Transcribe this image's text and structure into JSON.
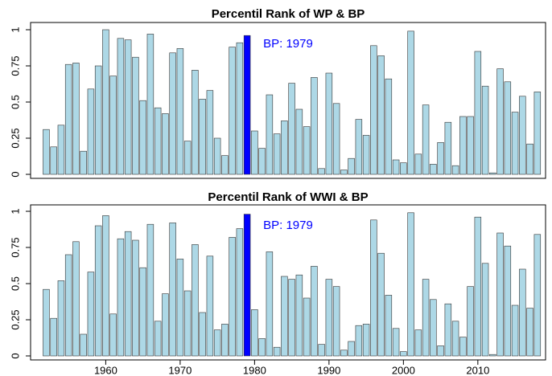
{
  "chart_data": [
    {
      "type": "bar",
      "title": "Percentil Rank of WP & BP",
      "x": [
        1952,
        1953,
        1954,
        1955,
        1956,
        1957,
        1958,
        1959,
        1960,
        1961,
        1962,
        1963,
        1964,
        1965,
        1966,
        1967,
        1968,
        1969,
        1970,
        1971,
        1972,
        1973,
        1974,
        1975,
        1976,
        1977,
        1978,
        1979,
        1980,
        1981,
        1982,
        1983,
        1984,
        1985,
        1986,
        1987,
        1988,
        1989,
        1990,
        1991,
        1992,
        1993,
        1994,
        1995,
        1996,
        1997,
        1998,
        1999,
        2000,
        2001,
        2002,
        2003,
        2004,
        2005,
        2006,
        2007,
        2008,
        2009,
        2010,
        2011,
        2012,
        2013,
        2014,
        2015,
        2016,
        2017,
        2018
      ],
      "values": [
        0.31,
        0.19,
        0.34,
        0.76,
        0.77,
        0.16,
        0.59,
        0.75,
        1.0,
        0.68,
        0.94,
        0.93,
        0.81,
        0.51,
        0.97,
        0.46,
        0.42,
        0.84,
        0.87,
        0.23,
        0.72,
        0.52,
        0.58,
        0.25,
        0.13,
        0.88,
        0.91,
        0.96,
        0.3,
        0.18,
        0.55,
        0.28,
        0.37,
        0.63,
        0.45,
        0.33,
        0.67,
        0.04,
        0.7,
        0.49,
        0.03,
        0.11,
        0.38,
        0.27,
        0.89,
        0.82,
        0.66,
        0.1,
        0.08,
        0.99,
        0.14,
        0.48,
        0.07,
        0.22,
        0.36,
        0.06,
        0.4,
        0.4,
        0.85,
        0.61,
        0.01,
        0.73,
        0.64,
        0.43,
        0.54,
        0.21,
        0.57
      ],
      "color": "#add8e6",
      "highlight": {
        "x": 1979,
        "color": "#0000ff"
      },
      "annotation": "BP: 1979",
      "xlim": [
        1949.9,
        2019.1
      ],
      "ylim": [
        0,
        1
      ],
      "yticks": [
        0,
        0.25,
        0.5,
        0.75,
        1
      ]
    },
    {
      "type": "bar",
      "title": "Percentil Rank of WWI & BP",
      "x": [
        1952,
        1953,
        1954,
        1955,
        1956,
        1957,
        1958,
        1959,
        1960,
        1961,
        1962,
        1963,
        1964,
        1965,
        1966,
        1967,
        1968,
        1969,
        1970,
        1971,
        1972,
        1973,
        1974,
        1975,
        1976,
        1977,
        1978,
        1979,
        1980,
        1981,
        1982,
        1983,
        1984,
        1985,
        1986,
        1987,
        1988,
        1989,
        1990,
        1991,
        1992,
        1993,
        1994,
        1995,
        1996,
        1997,
        1998,
        1999,
        2000,
        2001,
        2002,
        2003,
        2004,
        2005,
        2006,
        2007,
        2008,
        2009,
        2010,
        2011,
        2012,
        2013,
        2014,
        2015,
        2016,
        2017,
        2018
      ],
      "values": [
        0.46,
        0.26,
        0.52,
        0.7,
        0.79,
        0.15,
        0.58,
        0.9,
        0.97,
        0.29,
        0.81,
        0.86,
        0.8,
        0.61,
        0.91,
        0.24,
        0.43,
        0.92,
        0.67,
        0.45,
        0.77,
        0.3,
        0.69,
        0.18,
        0.22,
        0.82,
        0.88,
        0.98,
        0.32,
        0.12,
        0.72,
        0.06,
        0.55,
        0.53,
        0.56,
        0.4,
        0.62,
        0.08,
        0.53,
        0.48,
        0.04,
        0.1,
        0.21,
        0.22,
        0.94,
        0.71,
        0.42,
        0.19,
        0.03,
        0.99,
        0.18,
        0.53,
        0.39,
        0.07,
        0.36,
        0.24,
        0.13,
        0.48,
        0.96,
        0.64,
        0.01,
        0.85,
        0.76,
        0.35,
        0.6,
        0.33,
        0.84
      ],
      "color": "#add8e6",
      "highlight": {
        "x": 1979,
        "color": "#0000ff"
      },
      "annotation": "BP: 1979",
      "xlim": [
        1949.9,
        2019.1
      ],
      "ylim": [
        0,
        1
      ],
      "yticks": [
        0,
        0.25,
        0.5,
        0.75,
        1
      ],
      "xticks": [
        1960,
        1970,
        1980,
        1990,
        2000,
        2010
      ]
    }
  ]
}
